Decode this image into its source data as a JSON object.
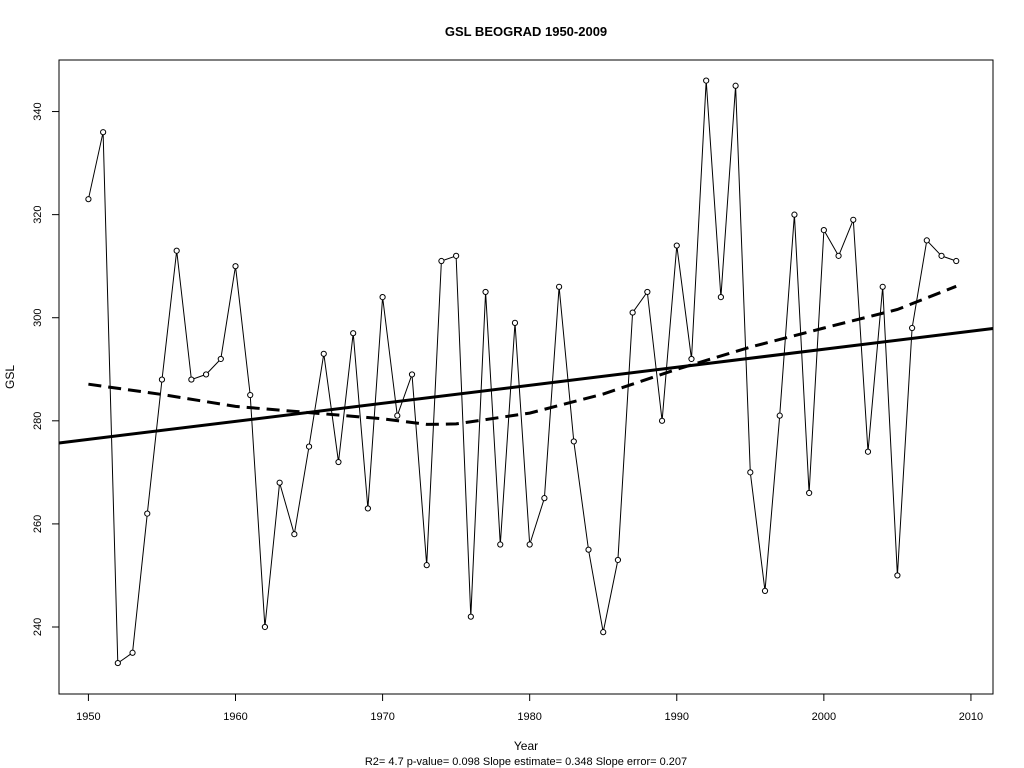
{
  "chart_data": {
    "type": "line",
    "title": "GSL   BEOGRAD 1950-2009",
    "xlabel": "Year",
    "ylabel": "GSL",
    "subtitle": "R2= 4.7  p-value= 0.098  Slope estimate= 0.348  Slope error= 0.207",
    "xlim": [
      1948,
      2011.5
    ],
    "ylim": [
      227,
      350
    ],
    "xticks": [
      1950,
      1960,
      1970,
      1980,
      1990,
      2000,
      2010
    ],
    "yticks": [
      240,
      260,
      280,
      300,
      320,
      340
    ],
    "grid": false,
    "series": [
      {
        "style": "observed",
        "x": [
          1950,
          1951,
          1952,
          1953,
          1954,
          1955,
          1956,
          1957,
          1958,
          1959,
          1960,
          1961,
          1962,
          1963,
          1964,
          1965,
          1966,
          1967,
          1968,
          1969,
          1970,
          1971,
          1972,
          1973,
          1974,
          1975,
          1976,
          1977,
          1978,
          1979,
          1980,
          1981,
          1982,
          1983,
          1984,
          1985,
          1986,
          1987,
          1988,
          1989,
          1990,
          1991,
          1992,
          1993,
          1994,
          1995,
          1996,
          1997,
          1998,
          1999,
          2000,
          2001,
          2002,
          2003,
          2004,
          2005,
          2006,
          2007,
          2008,
          2009
        ],
        "y": [
          323,
          336,
          233,
          235,
          262,
          288,
          313,
          288,
          289,
          292,
          310,
          285,
          240,
          268,
          258,
          275,
          293,
          272,
          297,
          263,
          304,
          281,
          289,
          252,
          311,
          312,
          242,
          305,
          256,
          299,
          256,
          265,
          306,
          276,
          255,
          239,
          253,
          301,
          305,
          280,
          314,
          292,
          346,
          304,
          345,
          270,
          247,
          281,
          320,
          266,
          317,
          312,
          319,
          274,
          306,
          250,
          298,
          315,
          312,
          311
        ]
      },
      {
        "style": "linear-trend",
        "x": [
          1948,
          2011.5
        ],
        "y": [
          275.7,
          297.9
        ]
      },
      {
        "style": "smoothed-trend",
        "x": [
          1950,
          1955,
          1960,
          1965,
          1970,
          1973,
          1975,
          1980,
          1985,
          1990,
          1995,
          2000,
          2005,
          2009
        ],
        "y": [
          287.1,
          285.1,
          282.8,
          281.6,
          280.4,
          279.3,
          279.4,
          281.5,
          285.2,
          290.0,
          294.3,
          298.0,
          301.6,
          306.1
        ]
      }
    ]
  }
}
